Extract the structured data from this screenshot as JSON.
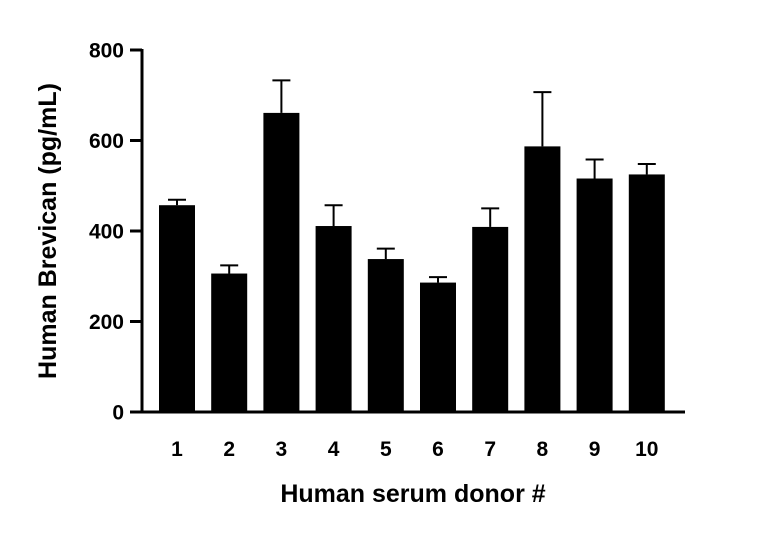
{
  "chart_data": {
    "type": "bar",
    "title": "",
    "xlabel": "Human serum donor #",
    "ylabel": "Human Brevican (pg/mL)",
    "ylim": [
      0,
      800
    ],
    "yticks": [
      0,
      200,
      400,
      600,
      800
    ],
    "categories": [
      "1",
      "2",
      "3",
      "4",
      "5",
      "6",
      "7",
      "8",
      "9",
      "10"
    ],
    "values": [
      457,
      306,
      661,
      411,
      338,
      286,
      409,
      587,
      516,
      525
    ],
    "error_upper": [
      12,
      18,
      72,
      46,
      23,
      12,
      41,
      120,
      42,
      23
    ],
    "error_type": "upper only",
    "grid": false,
    "legend": "none",
    "bar_color": "#000000"
  }
}
